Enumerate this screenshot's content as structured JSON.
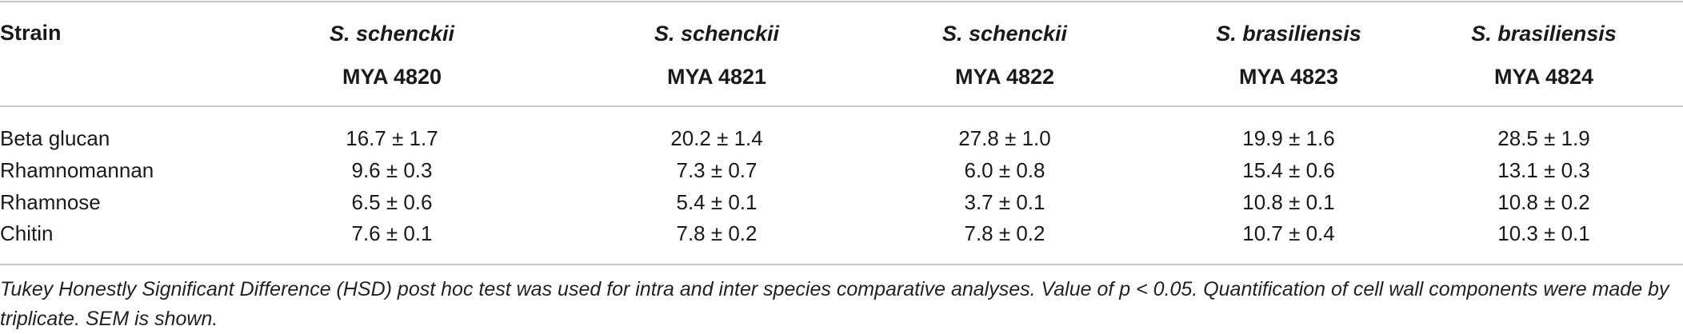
{
  "table": {
    "strain_header": "Strain",
    "columns": [
      {
        "species": "S. schenckii",
        "code": "MYA 4820"
      },
      {
        "species": "S. schenckii",
        "code": "MYA 4821"
      },
      {
        "species": "S. schenckii",
        "code": "MYA 4822"
      },
      {
        "species": "S. brasiliensis",
        "code": "MYA 4823"
      },
      {
        "species": "S. brasiliensis",
        "code": "MYA 4824"
      }
    ],
    "rows": [
      {
        "label": "Beta glucan",
        "values": [
          "16.7 ± 1.7",
          "20.2 ± 1.4",
          "27.8 ± 1.0",
          "19.9 ± 1.6",
          "28.5 ± 1.9"
        ]
      },
      {
        "label": "Rhamnomannan",
        "values": [
          "9.6 ± 0.3",
          "7.3 ± 0.7",
          "6.0 ± 0.8",
          "15.4 ± 0.6",
          "13.1 ± 0.3"
        ]
      },
      {
        "label": "Rhamnose",
        "values": [
          "6.5 ± 0.6",
          "5.4 ± 0.1",
          "3.7 ± 0.1",
          "10.8 ± 0.1",
          "10.8 ± 0.2"
        ]
      },
      {
        "label": "Chitin",
        "values": [
          "7.6 ± 0.1",
          "7.8 ± 0.2",
          "7.8 ± 0.2",
          "10.7 ± 0.4",
          "10.3 ± 0.1"
        ]
      }
    ],
    "footnote": "Tukey Honestly Significant Difference (HSD) post hoc test was used for intra and inter species comparative analyses. Value of p < 0.05. Quantification of cell wall components were made by triplicate. SEM is shown."
  }
}
